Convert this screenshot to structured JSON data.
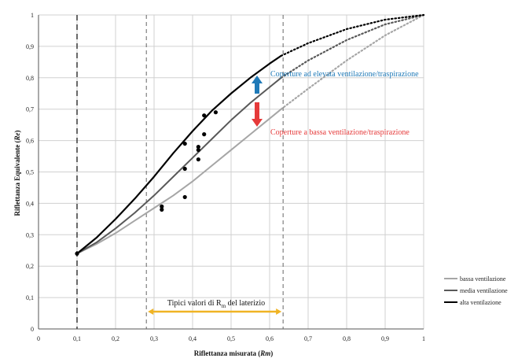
{
  "chart_data": {
    "type": "line",
    "xlabel_main": "Riflettanza misurata (",
    "xlabel_sym": "Rm",
    "xlabel_end": ")",
    "ylabel_main": "Riflettanza Equivalente (",
    "ylabel_sym": "Re",
    "ylabel_end": ")",
    "xlim": [
      0,
      1
    ],
    "ylim": [
      0,
      1
    ],
    "xticks": [
      "0",
      "0,1",
      "0,2",
      "0,3",
      "0,4",
      "0,5",
      "0,6",
      "0,7",
      "0,8",
      "0,9",
      "1"
    ],
    "yticks": [
      "0",
      "0,1",
      "0,2",
      "0,3",
      "0,4",
      "0,5",
      "0,6",
      "0,7",
      "0,8",
      "0,9",
      "1"
    ],
    "grid": true,
    "legend_position": "bottom-right",
    "series": [
      {
        "name": "bassa ventilazione",
        "color": "#a6a6a6",
        "x": [
          0.1,
          0.15,
          0.2,
          0.25,
          0.3,
          0.35,
          0.4,
          0.45,
          0.5,
          0.55,
          0.6,
          0.63
        ],
        "y": [
          0.24,
          0.27,
          0.305,
          0.345,
          0.385,
          0.425,
          0.47,
          0.52,
          0.57,
          0.62,
          0.67,
          0.7
        ],
        "dotted_x": [
          0.63,
          0.7,
          0.8,
          0.9,
          1.0
        ],
        "dotted_y": [
          0.7,
          0.765,
          0.855,
          0.935,
          1.0
        ]
      },
      {
        "name": "media ventilazione",
        "color": "#595959",
        "x": [
          0.1,
          0.15,
          0.2,
          0.25,
          0.3,
          0.35,
          0.4,
          0.45,
          0.5,
          0.55,
          0.6,
          0.63
        ],
        "y": [
          0.24,
          0.275,
          0.32,
          0.37,
          0.425,
          0.485,
          0.545,
          0.605,
          0.665,
          0.72,
          0.77,
          0.8
        ],
        "dotted_x": [
          0.63,
          0.7,
          0.8,
          0.9,
          1.0
        ],
        "dotted_y": [
          0.8,
          0.855,
          0.92,
          0.97,
          1.0
        ]
      },
      {
        "name": "alta ventilazione",
        "color": "#000000",
        "x": [
          0.1,
          0.15,
          0.2,
          0.25,
          0.3,
          0.35,
          0.4,
          0.45,
          0.5,
          0.55,
          0.6,
          0.63
        ],
        "y": [
          0.24,
          0.29,
          0.35,
          0.415,
          0.485,
          0.56,
          0.63,
          0.695,
          0.75,
          0.8,
          0.845,
          0.87
        ],
        "dotted_x": [
          0.63,
          0.7,
          0.8,
          0.9,
          1.0
        ],
        "dotted_y": [
          0.87,
          0.91,
          0.955,
          0.985,
          1.0
        ]
      }
    ],
    "points": {
      "x": [
        0.1,
        0.32,
        0.32,
        0.38,
        0.38,
        0.38,
        0.415,
        0.415,
        0.415,
        0.43,
        0.43,
        0.46
      ],
      "y": [
        0.24,
        0.39,
        0.38,
        0.42,
        0.51,
        0.59,
        0.54,
        0.57,
        0.58,
        0.62,
        0.68,
        0.69
      ]
    },
    "vlines": [
      {
        "x": 0.1,
        "style": "dash-heavy"
      },
      {
        "x": 0.28,
        "style": "dash"
      },
      {
        "x": 0.635,
        "style": "dash"
      }
    ],
    "annotations": {
      "high": {
        "text": "Coperture ad elevata ventilazione/traspirazione",
        "color": "#1f7ab8",
        "arrow_color": "#1f7ab8"
      },
      "low": {
        "text": "Coperture a bassa ventilazione/traspirazione",
        "color": "#e53a3a",
        "arrow_color": "#e53a3a"
      }
    },
    "range_label": {
      "prefix": "Tipici valori di R",
      "sub": "m",
      "suffix": " del laterizio",
      "color": "#f0b424",
      "x_from": 0.28,
      "x_to": 0.635
    }
  }
}
